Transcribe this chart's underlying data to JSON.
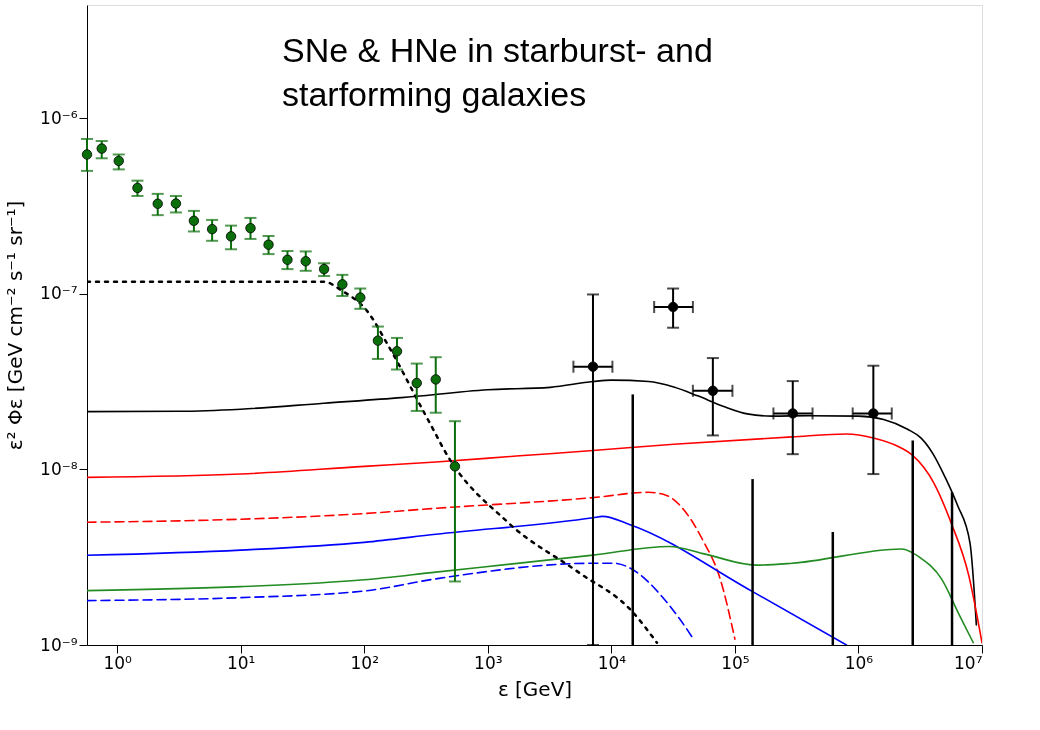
{
  "chart_data": {
    "type": "line",
    "xlabel": "ε  [GeV]",
    "ylabel": "ε² Φε  [GeV cm⁻² s⁻¹ sr⁻¹]",
    "annotations": [
      "SNe & HNe in starburst- and\nstarforming galaxies"
    ],
    "log": "xy",
    "grid": false,
    "xlim": [
      0.57,
      10000000
    ],
    "xticks": [
      {
        "value": 1,
        "label": "10⁰"
      },
      {
        "value": 10,
        "label": "10¹"
      },
      {
        "value": 100,
        "label": "10²"
      },
      {
        "value": 1000,
        "label": "10³"
      },
      {
        "value": 10000,
        "label": "10⁴"
      },
      {
        "value": 100000,
        "label": "10⁵"
      },
      {
        "value": 1000000,
        "label": "10⁶"
      },
      {
        "value": 10000000,
        "label": "10⁷"
      }
    ],
    "ylim": [
      1e-09,
      4.4e-06
    ],
    "yticks": [
      {
        "value": 1e-09,
        "label": "10⁻⁹"
      },
      {
        "value": 1e-08,
        "label": "10⁻⁸"
      },
      {
        "value": 1e-07,
        "label": "10⁻⁷"
      },
      {
        "value": 1e-06,
        "label": "10⁻⁶"
      }
    ],
    "series": [
      {
        "line_style": "solid",
        "color": "#000000",
        "x": [
          0.57,
          3.2,
          10,
          47,
          200,
          1000,
          3200,
          7100,
          10000,
          20000,
          32000,
          50000,
          80000,
          126000,
          200000,
          400000,
          1000000,
          1600000,
          2500000,
          3200000,
          4000000,
          5000000,
          6300000,
          8000000,
          9000000
        ],
        "values": [
          2.13e-08,
          2.14e-08,
          2.2e-08,
          2.38e-08,
          2.56e-08,
          2.84e-08,
          2.93e-08,
          3.16e-08,
          3.22e-08,
          3.16e-08,
          2.94e-08,
          2.62e-08,
          2.29e-08,
          2.07e-08,
          2.01e-08,
          2.02e-08,
          2.01e-08,
          1.92e-08,
          1.69e-08,
          1.51e-08,
          1.23e-08,
          9.1e-09,
          6.3e-09,
          3.8e-09,
          1.3e-09
        ]
      },
      {
        "line_style": "solid",
        "color": "#ff0000",
        "x": [
          0.57,
          10,
          100,
          380,
          1700,
          7100,
          32000,
          290000,
          800000,
          1320000,
          2100000,
          2750000,
          4100000,
          5600000,
          7800000,
          10000000
        ],
        "values": [
          9e-09,
          9.4e-09,
          1.04e-08,
          1.1e-08,
          1.19e-08,
          1.28e-08,
          1.39e-08,
          1.53e-08,
          1.59e-08,
          1.51e-08,
          1.35e-08,
          1.2e-08,
          8.3e-09,
          5e-09,
          2.5e-09,
          1.03e-09
        ]
      },
      {
        "line_style": "dashed",
        "color": "#ff0000",
        "x": [
          0.57,
          10,
          100,
          380,
          7100,
          20000,
          28000,
          40000,
          55000,
          76000,
          100000
        ],
        "values": [
          5e-09,
          5.2e-09,
          5.6e-09,
          6e-09,
          6.9e-09,
          7.4e-09,
          7.1e-09,
          5.7e-09,
          3.95e-09,
          2.38e-09,
          1.08e-09
        ]
      },
      {
        "line_style": "solid",
        "color": "#0000ff",
        "x": [
          0.57,
          10,
          100,
          380,
          7100,
          8500,
          14000,
          138000,
          800000
        ],
        "values": [
          3.24e-09,
          3.47e-09,
          3.84e-09,
          4.27e-09,
          5.3e-09,
          5.4e-09,
          4.86e-09,
          2.02e-09,
          1e-09
        ]
      },
      {
        "line_style": "dashed",
        "color": "#0000ff",
        "x": [
          0.57,
          10,
          100,
          380,
          7100,
          10500,
          16000,
          25000,
          37000,
          47000
        ],
        "values": [
          1.79e-09,
          1.86e-09,
          2.03e-09,
          2.38e-09,
          2.92e-09,
          2.92e-09,
          2.6e-09,
          1.93e-09,
          1.36e-09,
          1.06e-09
        ]
      },
      {
        "line_style": "solid",
        "color": "#228b22",
        "x": [
          0.57,
          10,
          100,
          380,
          7100,
          29500,
          57500,
          148000,
          290000,
          2240000,
          3160000,
          4700000,
          6500000,
          8500000
        ],
        "values": [
          2.04e-09,
          2.15e-09,
          2.35e-09,
          2.6e-09,
          3.25e-09,
          3.64e-09,
          3.29e-09,
          2.85e-09,
          2.92e-09,
          3.52e-09,
          3.14e-09,
          2.38e-09,
          1.5e-09,
          1.03e-09
        ]
      },
      {
        "line_style": "dotted",
        "color": "#000000",
        "x": [
          0.57,
          10,
          47,
          66,
          105,
          158,
          295,
          380,
          430,
          1450,
          5400,
          14500,
          23400
        ],
        "values": [
          1.17e-07,
          1.17e-07,
          1.17e-07,
          1.04e-07,
          8e-08,
          5e-08,
          2.2e-08,
          1.58e-08,
          1.34e-08,
          5e-09,
          2.6e-09,
          1.57e-09,
          1.03e-09
        ]
      },
      {
        "type": "scatter",
        "marker": "circle",
        "color": "#0a6e0a",
        "x": [
          0.57,
          0.75,
          1.03,
          1.46,
          2.13,
          2.99,
          4.18,
          5.87,
          8.35,
          12.0,
          16.8,
          23.9,
          33.6,
          47.3,
          66.5,
          92.9,
          129,
          184,
          266,
          379,
          542
        ],
        "values": [
          6.2e-07,
          6.7e-07,
          5.7e-07,
          4e-07,
          3.25e-07,
          3.26e-07,
          2.6e-07,
          2.33e-07,
          2.12e-07,
          2.36e-07,
          1.9e-07,
          1.56e-07,
          1.53e-07,
          1.38e-07,
          1.13e-07,
          9.5e-08,
          5.4e-08,
          4.7e-08,
          3.1e-08,
          3.25e-08,
          1.04e-08
        ],
        "errors": [
          [
            5e-07,
            7.6e-07
          ],
          [
            5.9e-07,
            7.4e-07
          ],
          [
            5.1e-07,
            6.2e-07
          ],
          [
            3.6e-07,
            4.4e-07
          ],
          [
            2.8e-07,
            3.7e-07
          ],
          [
            2.9e-07,
            3.6e-07
          ],
          [
            2.26e-07,
            2.96e-07
          ],
          [
            2e-07,
            2.63e-07
          ],
          [
            1.79e-07,
            2.44e-07
          ],
          [
            2.05e-07,
            2.7e-07
          ],
          [
            1.68e-07,
            2.13e-07
          ],
          [
            1.38e-07,
            1.75e-07
          ],
          [
            1.35e-07,
            1.74e-07
          ],
          [
            1.26e-07,
            1.49e-07
          ],
          [
            9.7e-08,
            1.28e-07
          ],
          [
            8.2e-08,
            1.07e-07
          ],
          [
            4.25e-08,
            6.5e-08
          ],
          [
            3.7e-08,
            5.6e-08
          ],
          [
            2.15e-08,
            4e-08
          ],
          [
            2.1e-08,
            4.35e-08
          ],
          [
            2.3e-09,
            1.88e-08
          ]
        ]
      },
      {
        "type": "scatter",
        "marker": "circle",
        "color": "#000000",
        "x": [
          7100,
          31600,
          66300,
          294000,
          1320000
        ],
        "values": [
          3.84e-08,
          8.4e-08,
          2.8e-08,
          2.08e-08,
          2.08e-08
        ],
        "errors": [
          [
            1e-09,
            9.9e-08
          ],
          [
            6.4e-08,
            1.07e-07
          ],
          [
            1.56e-08,
            4.3e-08
          ],
          [
            1.22e-08,
            3.18e-08
          ],
          [
            9.4e-09,
            3.89e-08
          ]
        ],
        "xerrors": [
          [
            4930,
            10200
          ],
          [
            22200,
            45700
          ],
          [
            45700,
            95500
          ],
          [
            205000,
            425000
          ],
          [
            898000,
            1860000
          ]
        ]
      },
      {
        "type": "bar",
        "color": "#000000",
        "x": [
          14900,
          139000,
          620000,
          2750000,
          5720000
        ],
        "values": [
          2.67e-08,
          8.8e-09,
          4.4e-09,
          1.46e-08,
          7.4e-09
        ]
      }
    ]
  }
}
